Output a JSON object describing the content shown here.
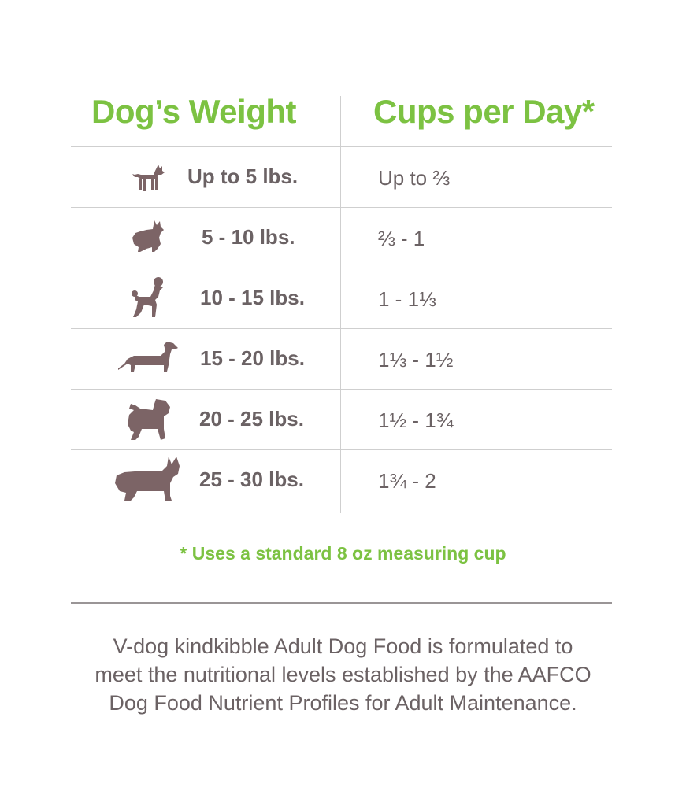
{
  "header": {
    "weight_title": "Dog’s Weight",
    "cups_title": "Cups per Day*"
  },
  "rows": [
    {
      "dog_icon": "chihuahua-icon",
      "weight": "Up to 5 lbs.",
      "cups": "Up to ⅔"
    },
    {
      "dog_icon": "pomeranian-icon",
      "weight": "5 - 10 lbs.",
      "cups": "⅔ - 1"
    },
    {
      "dog_icon": "poodle-icon",
      "weight": "10 - 15 lbs.",
      "cups": "1 - 1⅓"
    },
    {
      "dog_icon": "dachshund-icon",
      "weight": "15 - 20 lbs.",
      "cups": "1⅓ - 1½"
    },
    {
      "dog_icon": "pug-icon",
      "weight": "20 - 25 lbs.",
      "cups": "1½ - 1¾"
    },
    {
      "dog_icon": "corgi-icon",
      "weight": "25 - 30 lbs.",
      "cups": "1¾ - 2"
    }
  ],
  "note": "* Uses a standard 8 oz measuring cup",
  "description": {
    "line1": "V-dog kindkibble Adult Dog Food is formulated to",
    "line2": "meet the nutritional levels established by the AAFCO",
    "line3": "Dog Food Nutrient Profiles for Adult Maintenance."
  },
  "colors": {
    "accent": "#7cc242",
    "text": "#6b6264",
    "icon": "#7c6466"
  }
}
